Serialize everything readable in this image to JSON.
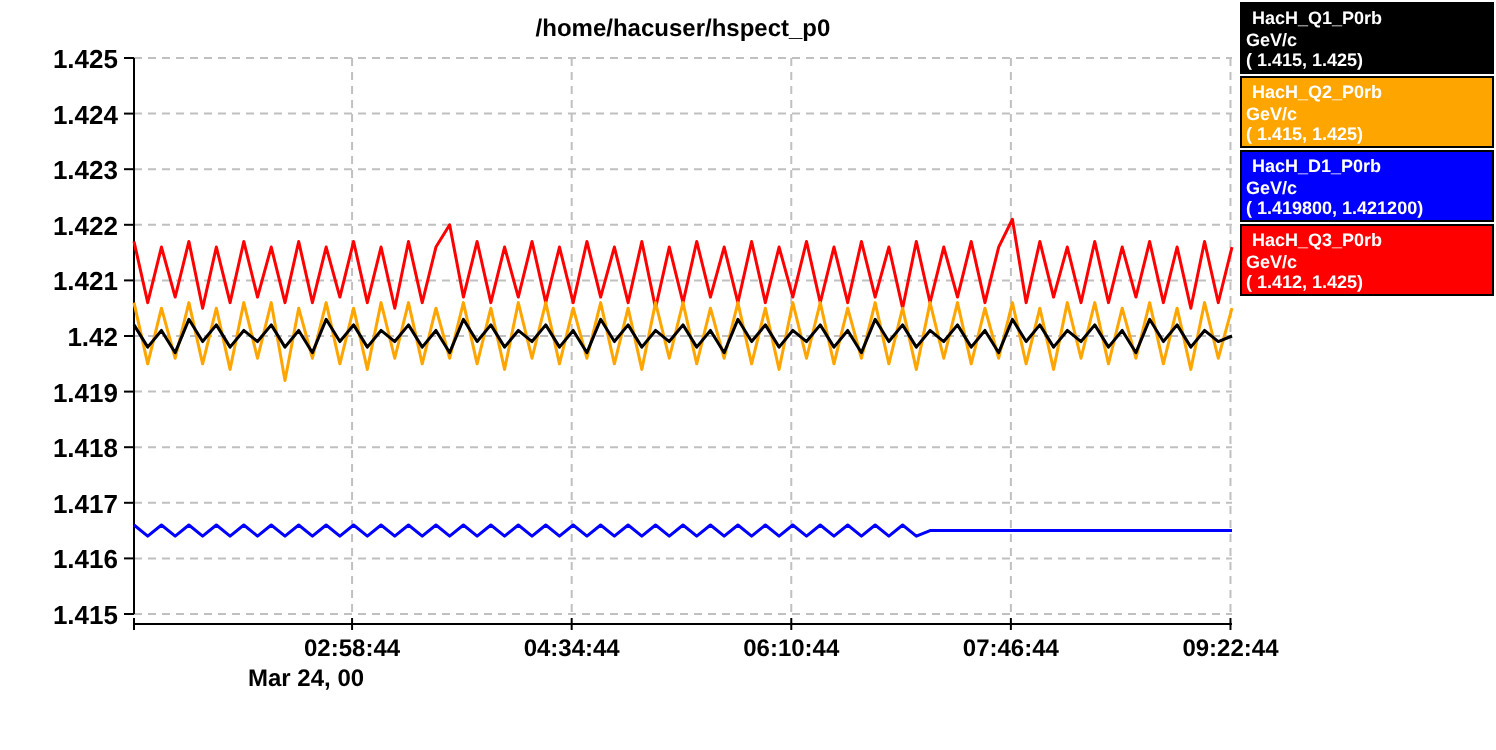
{
  "chart_data": {
    "type": "line",
    "title": "/home/hacuser/hspect_p0",
    "x": [
      1.39,
      1.49,
      1.59,
      1.69,
      1.79,
      1.89,
      1.99,
      2.09,
      2.19,
      2.29,
      2.39,
      2.49,
      2.59,
      2.69,
      2.79,
      2.89,
      2.99,
      3.09,
      3.19,
      3.29,
      3.39,
      3.49,
      3.59,
      3.69,
      3.79,
      3.89,
      3.99,
      4.09,
      4.19,
      4.29,
      4.39,
      4.49,
      4.59,
      4.69,
      4.79,
      4.89,
      4.99,
      5.09,
      5.19,
      5.29,
      5.39,
      5.49,
      5.59,
      5.69,
      5.79,
      5.89,
      5.99,
      6.09,
      6.19,
      6.29,
      6.39,
      6.49,
      6.59,
      6.69,
      6.79,
      6.89,
      6.99,
      7.09,
      7.19,
      7.29,
      7.39,
      7.49,
      7.59,
      7.69,
      7.79,
      7.89,
      7.99,
      8.09,
      8.19,
      8.29,
      8.39,
      8.49,
      8.59,
      8.69,
      8.79,
      8.89,
      8.99,
      9.09,
      9.19,
      9.29,
      9.39
    ],
    "series": [
      {
        "name": "HacH_Q1_P0rb",
        "color": "#000000",
        "values": [
          1.4202,
          1.4198,
          1.4201,
          1.4197,
          1.4203,
          1.4199,
          1.4202,
          1.4198,
          1.4201,
          1.4199,
          1.4202,
          1.4198,
          1.4201,
          1.4197,
          1.4203,
          1.4199,
          1.4202,
          1.4198,
          1.4201,
          1.4199,
          1.4202,
          1.4198,
          1.4201,
          1.4197,
          1.4203,
          1.4199,
          1.4202,
          1.4198,
          1.4201,
          1.4199,
          1.4202,
          1.4198,
          1.4201,
          1.4197,
          1.4203,
          1.4199,
          1.4202,
          1.4198,
          1.4201,
          1.4199,
          1.4202,
          1.4198,
          1.4201,
          1.4197,
          1.4203,
          1.4199,
          1.4202,
          1.4198,
          1.4201,
          1.4199,
          1.4202,
          1.4198,
          1.4201,
          1.4197,
          1.4203,
          1.4199,
          1.4202,
          1.4198,
          1.4201,
          1.4199,
          1.4202,
          1.4198,
          1.4201,
          1.4197,
          1.4203,
          1.4199,
          1.4202,
          1.4198,
          1.4201,
          1.4199,
          1.4202,
          1.4198,
          1.4201,
          1.4197,
          1.4203,
          1.4199,
          1.4202,
          1.4198,
          1.4201,
          1.4199,
          1.42
        ]
      },
      {
        "name": "HacH_Q2_P0rb",
        "color": "#ffa500",
        "values": [
          1.4206,
          1.4195,
          1.4205,
          1.4196,
          1.4206,
          1.4195,
          1.4205,
          1.4194,
          1.4206,
          1.4196,
          1.4206,
          1.4192,
          1.4205,
          1.4196,
          1.4206,
          1.4195,
          1.4205,
          1.4194,
          1.4206,
          1.4196,
          1.4206,
          1.4195,
          1.4205,
          1.4196,
          1.4206,
          1.4195,
          1.4205,
          1.4194,
          1.4206,
          1.4196,
          1.4206,
          1.4195,
          1.4205,
          1.4196,
          1.4206,
          1.4195,
          1.4205,
          1.4194,
          1.4206,
          1.4196,
          1.4206,
          1.4195,
          1.4205,
          1.4196,
          1.4206,
          1.4195,
          1.4205,
          1.4194,
          1.4206,
          1.4196,
          1.4206,
          1.4195,
          1.4205,
          1.4196,
          1.4206,
          1.4195,
          1.4205,
          1.4194,
          1.4206,
          1.4196,
          1.4206,
          1.4195,
          1.4205,
          1.4196,
          1.4206,
          1.4195,
          1.4205,
          1.4194,
          1.4206,
          1.4196,
          1.4206,
          1.4195,
          1.4205,
          1.4196,
          1.4206,
          1.4195,
          1.4205,
          1.4194,
          1.4206,
          1.4196,
          1.4205
        ]
      },
      {
        "name": "HacH_D1_P0rb",
        "color": "#0000ff",
        "values": [
          1.4166,
          1.4164,
          1.4166,
          1.4164,
          1.4166,
          1.4164,
          1.4166,
          1.4164,
          1.4166,
          1.4164,
          1.4166,
          1.4164,
          1.4166,
          1.4164,
          1.4166,
          1.4164,
          1.4166,
          1.4164,
          1.4166,
          1.4164,
          1.4166,
          1.4164,
          1.4166,
          1.4164,
          1.4166,
          1.4164,
          1.4166,
          1.4164,
          1.4166,
          1.4164,
          1.4166,
          1.4164,
          1.4166,
          1.4164,
          1.4166,
          1.4164,
          1.4166,
          1.4164,
          1.4166,
          1.4164,
          1.4166,
          1.4164,
          1.4166,
          1.4164,
          1.4166,
          1.4164,
          1.4166,
          1.4164,
          1.4166,
          1.4164,
          1.4166,
          1.4164,
          1.4166,
          1.4164,
          1.4166,
          1.4164,
          1.4166,
          1.4164,
          1.4165,
          1.4165,
          1.4165,
          1.4165,
          1.4165,
          1.4165,
          1.4165,
          1.4165,
          1.4165,
          1.4165,
          1.4165,
          1.4165,
          1.4165,
          1.4165,
          1.4165,
          1.4165,
          1.4165,
          1.4165,
          1.4165,
          1.4165,
          1.4165,
          1.4165,
          1.4165
        ]
      },
      {
        "name": "HacH_Q3_P0rb",
        "color": "#ff0000",
        "values": [
          1.4217,
          1.4206,
          1.4216,
          1.4207,
          1.4217,
          1.4205,
          1.4216,
          1.4206,
          1.4217,
          1.4207,
          1.4216,
          1.4206,
          1.4217,
          1.4206,
          1.4216,
          1.4207,
          1.4217,
          1.4206,
          1.4216,
          1.4205,
          1.4217,
          1.4206,
          1.4216,
          1.422,
          1.4207,
          1.4217,
          1.4206,
          1.4216,
          1.4207,
          1.4217,
          1.4206,
          1.4216,
          1.4206,
          1.4217,
          1.4207,
          1.4216,
          1.4206,
          1.4217,
          1.4205,
          1.4216,
          1.4206,
          1.4217,
          1.4207,
          1.4216,
          1.4206,
          1.4217,
          1.4206,
          1.4216,
          1.4207,
          1.4217,
          1.4206,
          1.4216,
          1.4206,
          1.4217,
          1.4207,
          1.4216,
          1.4205,
          1.4217,
          1.4206,
          1.4216,
          1.4207,
          1.4217,
          1.4206,
          1.4216,
          1.4221,
          1.4206,
          1.4217,
          1.4207,
          1.4216,
          1.4206,
          1.4217,
          1.4206,
          1.4216,
          1.4207,
          1.4217,
          1.4206,
          1.4216,
          1.4205,
          1.4217,
          1.4206,
          1.4216
        ]
      }
    ],
    "xlim": [
      1.39,
      9.39
    ],
    "xticks": [
      {
        "value": 2.9789,
        "label": "02:58:44"
      },
      {
        "value": 4.5789,
        "label": "04:34:44"
      },
      {
        "value": 6.1789,
        "label": "06:10:44"
      },
      {
        "value": 7.7789,
        "label": "07:46:44"
      },
      {
        "value": 9.3789,
        "label": "09:22:44"
      }
    ],
    "ylim": [
      1.415,
      1.425
    ],
    "yticks": [
      1.415,
      1.416,
      1.417,
      1.418,
      1.419,
      1.42,
      1.421,
      1.422,
      1.423,
      1.424,
      1.425
    ],
    "grid": true,
    "legend": "right",
    "marker": "none",
    "line_style": "solid",
    "annotations": [
      "Mar 24, 00",
      "GeV/c",
      "( 1.415, 1.425)",
      "GeV/c",
      "( 1.415, 1.425)",
      "GeV/c",
      "( 1.419800, 1.421200)",
      "GeV/c",
      "( 1.412, 1.425)"
    ]
  }
}
